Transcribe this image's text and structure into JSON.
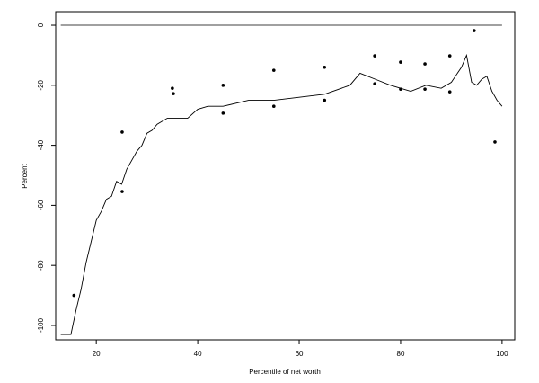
{
  "chart_data": {
    "type": "line",
    "xlabel": "Percentile of net worth",
    "ylabel": "Percent",
    "xlim": [
      12,
      102.5
    ],
    "ylim": [
      -104.8,
      4.5
    ],
    "xticks": [
      20,
      40,
      60,
      80,
      100
    ],
    "yticks": [
      0,
      -20,
      -40,
      -60,
      -80,
      -100
    ],
    "hline": 0,
    "series": [
      {
        "mode": "line",
        "color": "#000000",
        "x": [
          13,
          15,
          16,
          17,
          18,
          19,
          20,
          21,
          22,
          23,
          24,
          25,
          26,
          27,
          28,
          29,
          30,
          31,
          32,
          33,
          34,
          35,
          36,
          38,
          40,
          42,
          45,
          50,
          55,
          60,
          65,
          70,
          72,
          75,
          78,
          80,
          82,
          85,
          88,
          90,
          92,
          93,
          94,
          95,
          96,
          97,
          98,
          99,
          100
        ],
        "values": [
          -103,
          -103,
          -95,
          -88,
          -79,
          -72,
          -65,
          -62,
          -58,
          -57,
          -52,
          -53,
          -48,
          -45,
          -42,
          -40,
          -36,
          -35,
          -33,
          -32,
          -31,
          -31,
          -31,
          -31,
          -28,
          -27,
          -27,
          -25,
          -25,
          -24,
          -23,
          -20,
          -16,
          -18,
          -20,
          -21,
          -22,
          -20,
          -21,
          -19,
          -14,
          -10,
          -19,
          -20,
          -18,
          -17,
          -22,
          -25,
          -27
        ]
      },
      {
        "mode": "markers",
        "color": "#000000",
        "x": [
          15.6,
          25.1,
          25.1,
          35,
          35.2,
          45,
          45,
          55,
          55,
          65,
          65,
          74.9,
          74.9,
          80,
          80,
          84.8,
          84.8,
          89.7,
          89.7,
          94.5,
          98.6
        ],
        "values": [
          -90,
          -35.6,
          -55.4,
          -21,
          -22.8,
          -20,
          -29.3,
          -15,
          -27,
          -14,
          -25,
          -10.2,
          -19.5,
          -12.3,
          -21.3,
          -12.9,
          -21.3,
          -10.2,
          -22.2,
          -1.8,
          -38.9
        ]
      }
    ]
  }
}
